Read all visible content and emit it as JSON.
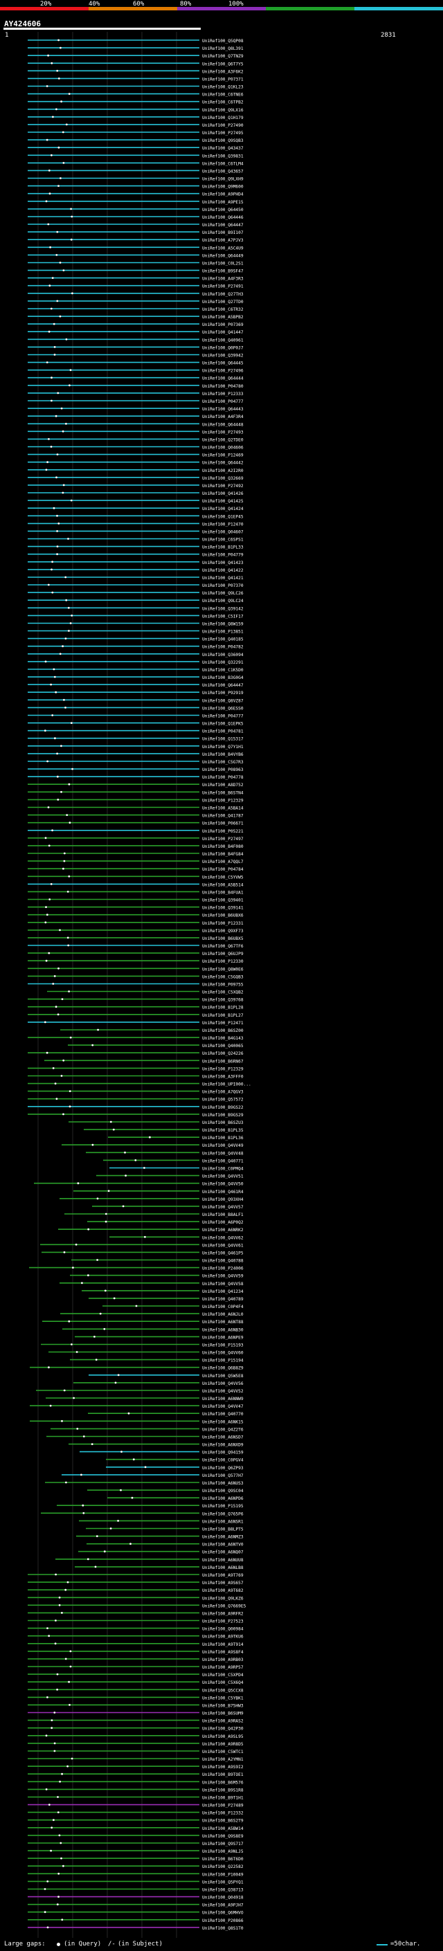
{
  "header": {
    "query_id": "AY424606",
    "coord_start": "1",
    "coord_end": "2831",
    "scale_labels": [
      "20%",
      "40%",
      "60%",
      "80%",
      "100%"
    ],
    "scale_colors": [
      "#e8141c",
      "#e07a00",
      "#8c2db8",
      "#1fa02a",
      "#27c3d8"
    ]
  },
  "hits": [
    {
      "id": "UniRef100_Q5QP08",
      "color": "cyan"
    },
    {
      "id": "UniRef100_Q8L391",
      "color": "cyan"
    },
    {
      "id": "UniRef100_Q7TNZ9",
      "color": "cyan"
    },
    {
      "id": "UniRef100_Q6T7Y5",
      "color": "cyan"
    },
    {
      "id": "UniRef100_A3F6K2",
      "color": "cyan"
    },
    {
      "id": "UniRef100_P07371",
      "color": "cyan"
    },
    {
      "id": "UniRef100_Q1KL23",
      "color": "cyan"
    },
    {
      "id": "UniRef100_C6TNE6",
      "color": "cyan"
    },
    {
      "id": "UniRef100_C6TPB2",
      "color": "cyan"
    },
    {
      "id": "UniRef100_Q9LX16",
      "color": "cyan"
    },
    {
      "id": "UniRef100_Q1H179",
      "color": "cyan"
    },
    {
      "id": "UniRef100_P27490",
      "color": "cyan"
    },
    {
      "id": "UniRef100_P27495",
      "color": "cyan"
    },
    {
      "id": "UniRef100_Q9SQB3",
      "color": "cyan"
    },
    {
      "id": "UniRef100_Q43437",
      "color": "cyan"
    },
    {
      "id": "UniRef100_Q39831",
      "color": "cyan"
    },
    {
      "id": "UniRef100_C6TLM4",
      "color": "cyan"
    },
    {
      "id": "UniRef100_Q43657",
      "color": "cyan"
    },
    {
      "id": "UniRef100_Q9LXH9",
      "color": "cyan"
    },
    {
      "id": "UniRef100_Q9M600",
      "color": "cyan"
    },
    {
      "id": "UniRef100_A9PHD4",
      "color": "cyan"
    },
    {
      "id": "UniRef100_A9PE15",
      "color": "cyan"
    },
    {
      "id": "UniRef100_Q64450",
      "color": "cyan"
    },
    {
      "id": "UniRef100_Q64446",
      "color": "cyan"
    },
    {
      "id": "UniRef100_Q64447",
      "color": "cyan"
    },
    {
      "id": "UniRef100_B9I107",
      "color": "cyan"
    },
    {
      "id": "UniRef100_A7PJV3",
      "color": "cyan"
    },
    {
      "id": "UniRef100_A5C4U9",
      "color": "cyan"
    },
    {
      "id": "UniRef100_Q64449",
      "color": "cyan"
    },
    {
      "id": "UniRef100_C0L2S1",
      "color": "cyan"
    },
    {
      "id": "UniRef100_B9SF47",
      "color": "cyan"
    },
    {
      "id": "UniRef100_A4F3R3",
      "color": "cyan"
    },
    {
      "id": "UniRef100_P27491",
      "color": "cyan"
    },
    {
      "id": "UniRef100_Q27TH3",
      "color": "cyan"
    },
    {
      "id": "UniRef100_Q27TD0",
      "color": "cyan"
    },
    {
      "id": "UniRef100_C6TR32",
      "color": "cyan"
    },
    {
      "id": "UniRef100_A5BPB2",
      "color": "cyan"
    },
    {
      "id": "UniRef100_P07369",
      "color": "cyan"
    },
    {
      "id": "UniRef100_Q41447",
      "color": "cyan"
    },
    {
      "id": "UniRef100_Q40961",
      "color": "cyan"
    },
    {
      "id": "UniRef100_Q0P0J7",
      "color": "cyan"
    },
    {
      "id": "UniRef100_Q39942",
      "color": "cyan"
    },
    {
      "id": "UniRef100_Q64445",
      "color": "cyan"
    },
    {
      "id": "UniRef100_P27496",
      "color": "cyan"
    },
    {
      "id": "UniRef100_Q64444",
      "color": "cyan"
    },
    {
      "id": "UniRef100_P04780",
      "color": "cyan"
    },
    {
      "id": "UniRef100_P12333",
      "color": "cyan"
    },
    {
      "id": "UniRef100_P04777",
      "color": "cyan"
    },
    {
      "id": "UniRef100_Q64443",
      "color": "cyan"
    },
    {
      "id": "UniRef100_A4F3R4",
      "color": "cyan"
    },
    {
      "id": "UniRef100_Q64448",
      "color": "cyan"
    },
    {
      "id": "UniRef100_P27493",
      "color": "cyan"
    },
    {
      "id": "UniRef100_Q2TDE0",
      "color": "cyan"
    },
    {
      "id": "UniRef100_Q04606",
      "color": "cyan"
    },
    {
      "id": "UniRef100_P12469",
      "color": "cyan"
    },
    {
      "id": "UniRef100_Q64442",
      "color": "cyan"
    },
    {
      "id": "UniRef100_A2I2R0",
      "color": "cyan"
    },
    {
      "id": "UniRef100_Q32669",
      "color": "cyan"
    },
    {
      "id": "UniRef100_P27492",
      "color": "cyan"
    },
    {
      "id": "UniRef100_Q41426",
      "color": "cyan"
    },
    {
      "id": "UniRef100_Q41425",
      "color": "cyan"
    },
    {
      "id": "UniRef100_Q41424",
      "color": "cyan"
    },
    {
      "id": "UniRef100_Q1EP45",
      "color": "cyan"
    },
    {
      "id": "UniRef100_P12470",
      "color": "cyan"
    },
    {
      "id": "UniRef100_Q04607",
      "color": "cyan"
    },
    {
      "id": "UniRef100_C6SPS1",
      "color": "cyan"
    },
    {
      "id": "UniRef100_B1PL33",
      "color": "cyan"
    },
    {
      "id": "UniRef100_P04779",
      "color": "cyan"
    },
    {
      "id": "UniRef100_Q41423",
      "color": "cyan"
    },
    {
      "id": "UniRef100_Q41422",
      "color": "cyan"
    },
    {
      "id": "UniRef100_Q41421",
      "color": "cyan"
    },
    {
      "id": "UniRef100_P07370",
      "color": "cyan"
    },
    {
      "id": "UniRef100_Q9LC26",
      "color": "cyan"
    },
    {
      "id": "UniRef100_Q9LC24",
      "color": "cyan"
    },
    {
      "id": "UniRef100_Q39142",
      "color": "cyan"
    },
    {
      "id": "UniRef100_C5IF17",
      "color": "cyan"
    },
    {
      "id": "UniRef100_Q8W159",
      "color": "cyan"
    },
    {
      "id": "UniRef100_P13851",
      "color": "cyan"
    },
    {
      "id": "UniRef100_Q40185",
      "color": "cyan"
    },
    {
      "id": "UniRef100_P04782",
      "color": "cyan"
    },
    {
      "id": "UniRef100_Q36094",
      "color": "cyan"
    },
    {
      "id": "UniRef100_Q32291",
      "color": "cyan"
    },
    {
      "id": "UniRef100_C1K5D0",
      "color": "cyan"
    },
    {
      "id": "UniRef100_B3G0G4",
      "color": "cyan"
    },
    {
      "id": "UniRef100_Q64447",
      "color": "cyan"
    },
    {
      "id": "UniRef100_P92919",
      "color": "cyan"
    },
    {
      "id": "UniRef100_Q8VZ87",
      "color": "cyan"
    },
    {
      "id": "UniRef100_Q6ESS0",
      "color": "cyan"
    },
    {
      "id": "UniRef100_P04777",
      "color": "cyan"
    },
    {
      "id": "UniRef100_Q1EPK5",
      "color": "cyan"
    },
    {
      "id": "UniRef100_P04781",
      "color": "cyan"
    },
    {
      "id": "UniRef100_Q15317",
      "color": "cyan"
    },
    {
      "id": "UniRef100_Q7Y1H1",
      "color": "cyan"
    },
    {
      "id": "UniRef100_B4VYB6",
      "color": "cyan"
    },
    {
      "id": "UniRef100_C5G7R3",
      "color": "cyan"
    },
    {
      "id": "UniRef100_P08963",
      "color": "cyan"
    },
    {
      "id": "UniRef100_P04778",
      "color": "cyan"
    },
    {
      "id": "UniRef100_A8D752",
      "color": "green"
    },
    {
      "id": "UniRef100_B6STN4",
      "color": "green"
    },
    {
      "id": "UniRef100_P12329",
      "color": "green"
    },
    {
      "id": "UniRef100_A5BA14",
      "color": "green"
    },
    {
      "id": "UniRef100_Q41787",
      "color": "green"
    },
    {
      "id": "UniRef100_P06671",
      "color": "green"
    },
    {
      "id": "UniRef100_P05221",
      "color": "cyan"
    },
    {
      "id": "UniRef100_P27497",
      "color": "green"
    },
    {
      "id": "UniRef100_B4F080",
      "color": "green"
    },
    {
      "id": "UniRef100_B4FG84",
      "color": "green"
    },
    {
      "id": "UniRef100_A7QQL7",
      "color": "green"
    },
    {
      "id": "UniRef100_P04784",
      "color": "green"
    },
    {
      "id": "UniRef100_C5YVW5",
      "color": "green"
    },
    {
      "id": "UniRef100_A5B514",
      "color": "cyan"
    },
    {
      "id": "UniRef100_B4FUA1",
      "color": "green"
    },
    {
      "id": "UniRef100_Q39401",
      "color": "green"
    },
    {
      "id": "UniRef100_Q39141",
      "color": "green"
    },
    {
      "id": "UniRef100_B6UBX6",
      "color": "green"
    },
    {
      "id": "UniRef100_P12331",
      "color": "green"
    },
    {
      "id": "UniRef100_Q9XF73",
      "color": "green"
    },
    {
      "id": "UniRef100_B6UBX5",
      "color": "green"
    },
    {
      "id": "UniRef100_Q67TF6",
      "color": "cyan"
    },
    {
      "id": "UniRef100_Q6UJP9",
      "color": "green"
    },
    {
      "id": "UniRef100_P12330",
      "color": "green"
    },
    {
      "id": "UniRef100_Q8W0E6",
      "color": "green"
    },
    {
      "id": "UniRef100_C5GQB3",
      "color": "green"
    },
    {
      "id": "UniRef100_P09755",
      "color": "cyan"
    },
    {
      "id": "UniRef100_C5XQB2",
      "color": "green"
    },
    {
      "id": "UniRef100_Q39768",
      "color": "green"
    },
    {
      "id": "UniRef100_B1PL28",
      "color": "green"
    },
    {
      "id": "UniRef100_B1PL27",
      "color": "green"
    },
    {
      "id": "UniRef100_P12471",
      "color": "cyan"
    },
    {
      "id": "UniRef100_B6SZ00",
      "color": "green"
    },
    {
      "id": "UniRef100_B4G143",
      "color": "green"
    },
    {
      "id": "UniRef100_Q40065",
      "color": "green"
    },
    {
      "id": "UniRef100_Q24226",
      "color": "green"
    },
    {
      "id": "UniRef100_B6RN67",
      "color": "green"
    },
    {
      "id": "UniRef100_P12329",
      "color": "green"
    },
    {
      "id": "UniRef100_A3FFF0",
      "color": "green"
    },
    {
      "id": "UniRef100_UPI000...",
      "color": "green"
    },
    {
      "id": "UniRef100_A7QGV3",
      "color": "green"
    },
    {
      "id": "UniRef100_Q57572",
      "color": "green"
    },
    {
      "id": "UniRef100_B9GS22",
      "color": "cyan"
    },
    {
      "id": "UniRef100_B9GS29",
      "color": "green"
    },
    {
      "id": "UniRef100_B6SZU3",
      "color": "green"
    },
    {
      "id": "UniRef100_B1PL35",
      "color": "green"
    },
    {
      "id": "UniRef100_B1PL36",
      "color": "green"
    },
    {
      "id": "UniRef100_Q4VV49",
      "color": "green"
    },
    {
      "id": "UniRef100_Q4VV48",
      "color": "green"
    },
    {
      "id": "UniRef100_Q40771",
      "color": "green"
    },
    {
      "id": "UniRef100_C0PMQ4",
      "color": "cyan"
    },
    {
      "id": "UniRef100_Q4VV51",
      "color": "green"
    },
    {
      "id": "UniRef100_Q4VV50",
      "color": "green"
    },
    {
      "id": "UniRef100_Q461R4",
      "color": "green"
    },
    {
      "id": "UniRef100_Q93XH4",
      "color": "green"
    },
    {
      "id": "UniRef100_Q4VV57",
      "color": "green"
    },
    {
      "id": "UniRef100_B8ALF1",
      "color": "green"
    },
    {
      "id": "UniRef100_A6P0Q2",
      "color": "green"
    },
    {
      "id": "UniRef100_A6NRK2",
      "color": "green"
    },
    {
      "id": "UniRef100_Q4VV62",
      "color": "green"
    },
    {
      "id": "UniRef100_Q4VV61",
      "color": "green"
    },
    {
      "id": "UniRef100_Q461P5",
      "color": "green"
    },
    {
      "id": "UniRef100_Q40788",
      "color": "green"
    },
    {
      "id": "UniRef100_P24006",
      "color": "green"
    },
    {
      "id": "UniRef100_Q4VV59",
      "color": "green"
    },
    {
      "id": "UniRef100_Q4VV58",
      "color": "green"
    },
    {
      "id": "UniRef100_Q41234",
      "color": "green"
    },
    {
      "id": "UniRef100_Q40789",
      "color": "green"
    },
    {
      "id": "UniRef100_C0P4F4",
      "color": "green"
    },
    {
      "id": "UniRef100_A6NJL0",
      "color": "green"
    },
    {
      "id": "UniRef100_A6NT88",
      "color": "green"
    },
    {
      "id": "UniRef100_A6NB30",
      "color": "green"
    },
    {
      "id": "UniRef100_A6NPE9",
      "color": "green"
    },
    {
      "id": "UniRef100_P15193",
      "color": "green"
    },
    {
      "id": "UniRef100_Q4VV60",
      "color": "green"
    },
    {
      "id": "UniRef100_P15194",
      "color": "green"
    },
    {
      "id": "UniRef100_Q6B8Z9",
      "color": "green"
    },
    {
      "id": "UniRef100_Q5W5E8",
      "color": "cyan"
    },
    {
      "id": "UniRef100_Q4VV56",
      "color": "green"
    },
    {
      "id": "UniRef100_Q4VV52",
      "color": "green"
    },
    {
      "id": "UniRef100_A6NNW9",
      "color": "green"
    },
    {
      "id": "UniRef100_Q4VV47",
      "color": "green"
    },
    {
      "id": "UniRef100_Q40770",
      "color": "green"
    },
    {
      "id": "UniRef100_A6NK15",
      "color": "green"
    },
    {
      "id": "UniRef100_Q4Z2T6",
      "color": "green"
    },
    {
      "id": "UniRef100_A6NSD7",
      "color": "green"
    },
    {
      "id": "UniRef100_A6NXD9",
      "color": "green"
    },
    {
      "id": "UniRef100_Q94159",
      "color": "cyan"
    },
    {
      "id": "UniRef100_C0PGV4",
      "color": "green"
    },
    {
      "id": "UniRef100_Q6ZP93",
      "color": "cyan"
    },
    {
      "id": "UniRef100_Q577H7",
      "color": "cyan"
    },
    {
      "id": "UniRef100_A6NUS3",
      "color": "green"
    },
    {
      "id": "UniRef100_Q9SC04",
      "color": "green"
    },
    {
      "id": "UniRef100_A6NPD6",
      "color": "green"
    },
    {
      "id": "UniRef100_P15195",
      "color": "green"
    },
    {
      "id": "UniRef100_Q765P6",
      "color": "green"
    },
    {
      "id": "UniRef100_A6NSR1",
      "color": "green"
    },
    {
      "id": "UniRef100_B8LPT5",
      "color": "green"
    },
    {
      "id": "UniRef100_A6NMZ3",
      "color": "green"
    },
    {
      "id": "UniRef100_A6NTV0",
      "color": "green"
    },
    {
      "id": "UniRef100_A6NQ07",
      "color": "green"
    },
    {
      "id": "UniRef100_A6NUU8",
      "color": "green"
    },
    {
      "id": "UniRef100_A6NLB8",
      "color": "green"
    },
    {
      "id": "UniRef100_A9T769",
      "color": "green"
    },
    {
      "id": "UniRef100_A9S657",
      "color": "green"
    },
    {
      "id": "UniRef100_A9T682",
      "color": "green"
    },
    {
      "id": "UniRef100_Q9LKZ6",
      "color": "green"
    },
    {
      "id": "UniRef100_Q7669E5",
      "color": "green"
    },
    {
      "id": "UniRef100_A9RFR2",
      "color": "green"
    },
    {
      "id": "UniRef100_P27523",
      "color": "green"
    },
    {
      "id": "UniRef100_Q00984",
      "color": "green"
    },
    {
      "id": "UniRef100_A9TKU6",
      "color": "green"
    },
    {
      "id": "UniRef100_A9T914",
      "color": "green"
    },
    {
      "id": "UniRef100_A9S8F4",
      "color": "green"
    },
    {
      "id": "UniRef100_A9RB03",
      "color": "green"
    },
    {
      "id": "UniRef100_A9RP57",
      "color": "green"
    },
    {
      "id": "UniRef100_C5XPD4",
      "color": "green"
    },
    {
      "id": "UniRef100_C5X6Q4",
      "color": "green"
    },
    {
      "id": "UniRef100_Q5CCX8",
      "color": "green"
    },
    {
      "id": "UniRef100_C5YBK1",
      "color": "green"
    },
    {
      "id": "UniRef100_B75HW3",
      "color": "green"
    },
    {
      "id": "UniRef100_B6SUM9",
      "color": "purple"
    },
    {
      "id": "UniRef100_A9RAS2",
      "color": "green"
    },
    {
      "id": "UniRef100_Q42P30",
      "color": "green"
    },
    {
      "id": "UniRef100_A9SL95",
      "color": "green"
    },
    {
      "id": "UniRef100_A9R8D5",
      "color": "green"
    },
    {
      "id": "UniRef100_C5WTC1",
      "color": "green"
    },
    {
      "id": "UniRef100_A2YMN1",
      "color": "green"
    },
    {
      "id": "UniRef100_A9S9I2",
      "color": "green"
    },
    {
      "id": "UniRef100_B9TOE1",
      "color": "green"
    },
    {
      "id": "UniRef100_B6M576",
      "color": "green"
    },
    {
      "id": "UniRef100_B9S1R8",
      "color": "green"
    },
    {
      "id": "UniRef100_B9T1H1",
      "color": "green"
    },
    {
      "id": "UniRef100_P27489",
      "color": "purple"
    },
    {
      "id": "UniRef100_P12332",
      "color": "green"
    },
    {
      "id": "UniRef100_B6S2T9",
      "color": "green"
    },
    {
      "id": "UniRef100_A5BW14",
      "color": "green"
    },
    {
      "id": "UniRef100_Q9S8E9",
      "color": "green"
    },
    {
      "id": "UniRef100_Q9S717",
      "color": "green"
    },
    {
      "id": "UniRef100_A9NLJ5",
      "color": "green"
    },
    {
      "id": "UniRef100_B6T6D0",
      "color": "green"
    },
    {
      "id": "UniRef100_Q22582",
      "color": "green"
    },
    {
      "id": "UniRef100_P10049",
      "color": "green"
    },
    {
      "id": "UniRef100_Q5PYQ1",
      "color": "green"
    },
    {
      "id": "UniRef100_Q38713",
      "color": "green"
    },
    {
      "id": "UniRef100_Q04918",
      "color": "purple"
    },
    {
      "id": "UniRef100_A9PJH7",
      "color": "green"
    },
    {
      "id": "UniRef100_Q6MHVO",
      "color": "green"
    },
    {
      "id": "UniRef100_P20866",
      "color": "green"
    },
    {
      "id": "UniRef100_Q8S1T0",
      "color": "purple"
    }
  ],
  "footer": {
    "large_gaps_label": "Large gaps:",
    "query_gap_label": "(in Query)",
    "subject_gap_label": "(in Subject)",
    "legend_label": "=50char."
  }
}
